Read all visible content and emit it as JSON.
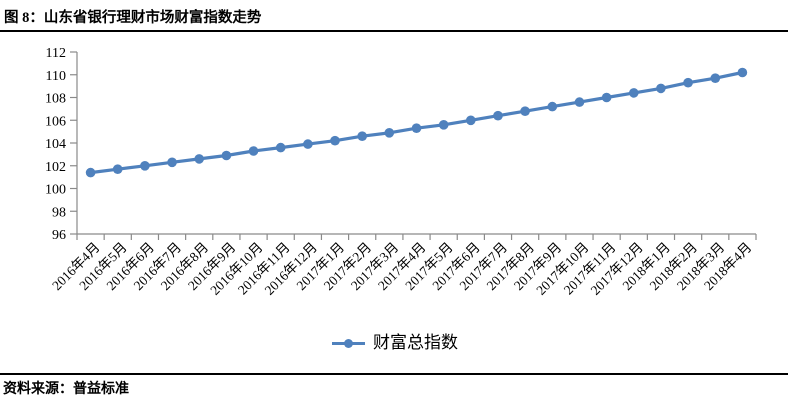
{
  "figure": {
    "title": "图 8：山东省银行理财市场财富指数走势",
    "source": "资料来源：普益标准"
  },
  "colors": {
    "series_blue": "#4F81BD",
    "axis_gray": "#8a8a8a",
    "text_black": "#000000",
    "divider_black": "#000000",
    "background": "#FFFFFF"
  },
  "chart_data": {
    "type": "line",
    "title": "山东省银行理财市场财富指数走势",
    "categories": [
      "2016年4月",
      "2016年5月",
      "2016年6月",
      "2016年7月",
      "2016年8月",
      "2016年9月",
      "2016年10月",
      "2016年11月",
      "2016年12月",
      "2017年1月",
      "2017年2月",
      "2017年3月",
      "2017年4月",
      "2017年5月",
      "2017年6月",
      "2017年7月",
      "2017年8月",
      "2017年9月",
      "2017年10月",
      "2017年11月",
      "2017年12月",
      "2018年1月",
      "2018年2月",
      "2018年3月",
      "2018年4月"
    ],
    "series": [
      {
        "name": "财富总指数",
        "color": "#4F81BD",
        "marker": "circle",
        "values": [
          101.4,
          101.7,
          102.0,
          102.3,
          102.6,
          102.9,
          103.3,
          103.6,
          103.9,
          104.2,
          104.6,
          104.9,
          105.3,
          105.6,
          106.0,
          106.4,
          106.8,
          107.2,
          107.6,
          108.0,
          108.4,
          108.8,
          109.3,
          109.7,
          110.2
        ]
      }
    ],
    "xlabel": "",
    "ylabel": "",
    "ylim": [
      96,
      112
    ],
    "ytick_step": 2,
    "grid": false,
    "legend_position": "bottom",
    "x_label_rotation_deg": 45
  }
}
